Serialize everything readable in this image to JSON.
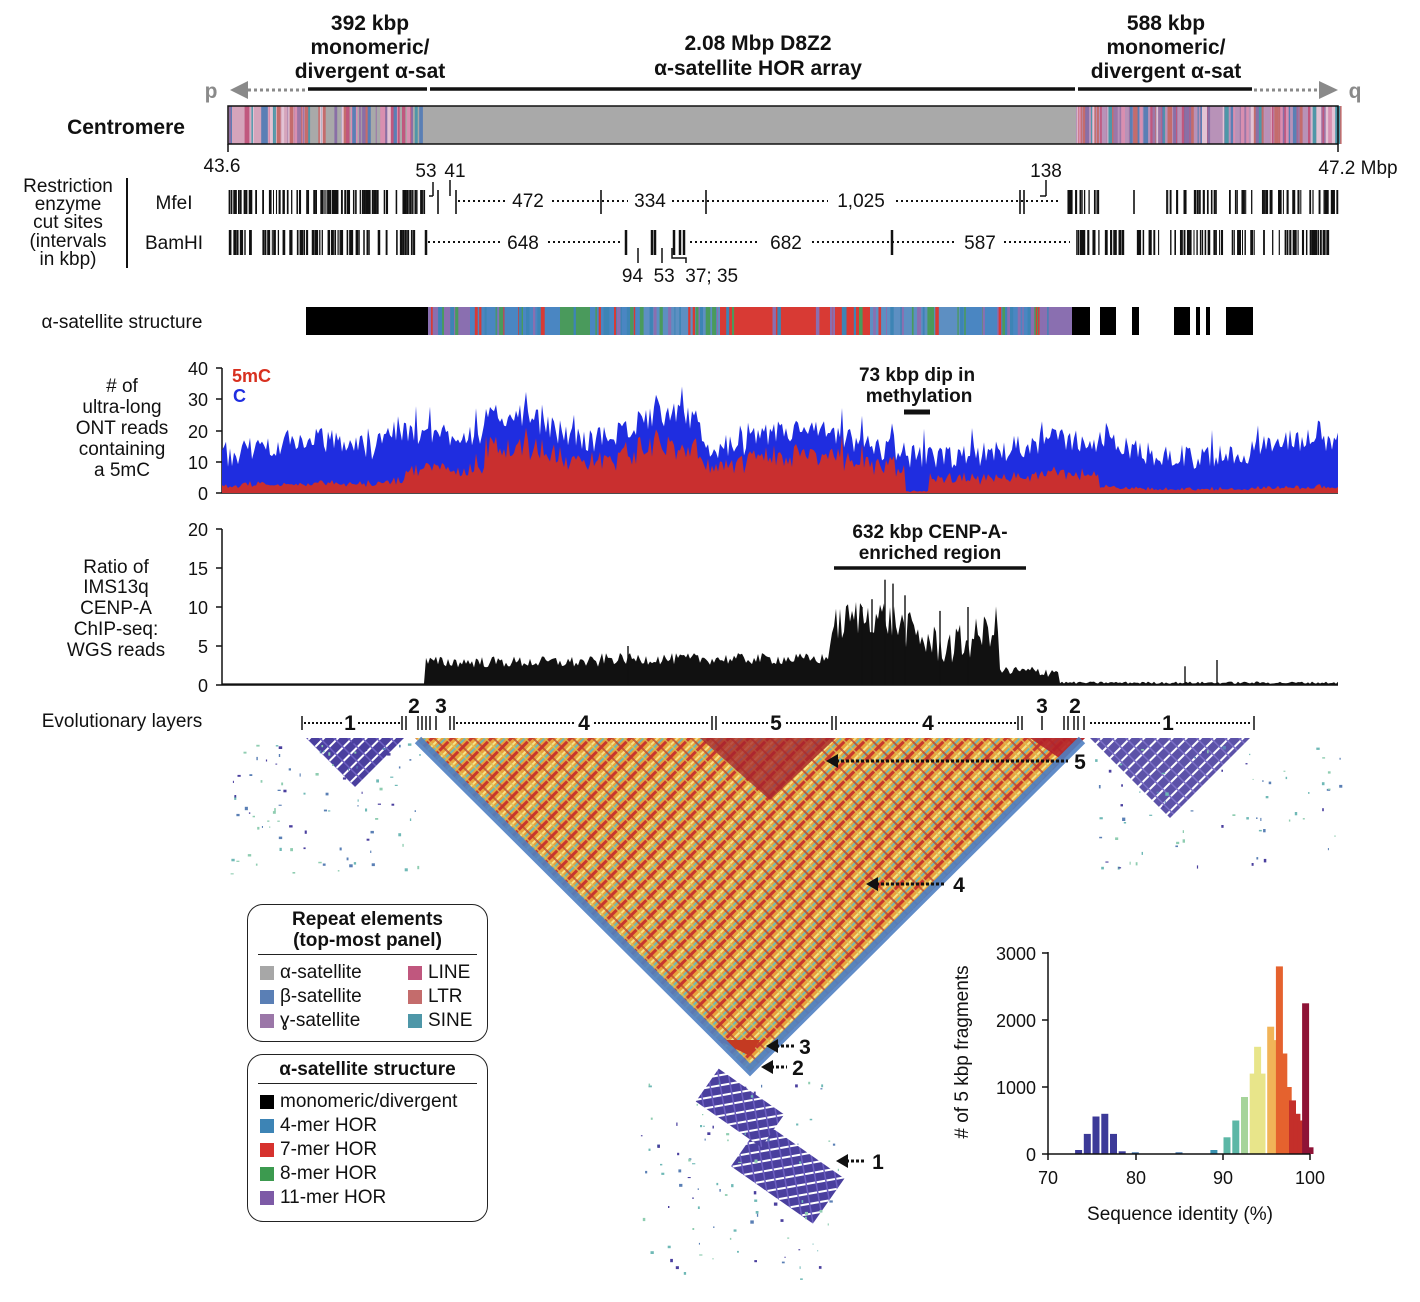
{
  "header": {
    "left_block": [
      "392 kbp",
      "monomeric/",
      "divergent α-sat"
    ],
    "center_block": [
      "2.08 Mbp D8Z2",
      "α-satellite HOR array"
    ],
    "right_block": [
      "588 kbp",
      "monomeric/",
      "divergent α-sat"
    ],
    "p_arm": "p",
    "q_arm": "q"
  },
  "centromere_track": {
    "label": "Centromere",
    "start_coord": "43.6",
    "end_coord": "47.2 Mbp"
  },
  "restriction": {
    "group_label": [
      "Restriction",
      "enzyme",
      "cut sites",
      "(intervals",
      "in kbp)"
    ],
    "mfei": {
      "label": "MfeI",
      "intervals": [
        "472",
        "334",
        "1,025"
      ],
      "callouts": [
        "53",
        "41",
        "138"
      ]
    },
    "bamhi": {
      "label": "BamHI",
      "intervals": [
        "648",
        "682",
        "587"
      ],
      "callouts": "94  53  37; 35"
    }
  },
  "alpha_structure_track": {
    "label": "α-satellite structure"
  },
  "methylation_panel": {
    "ylabel": [
      "# of",
      "ultra-long",
      "ONT reads",
      "containing",
      "a 5mC"
    ],
    "yticks": [
      "0",
      "10",
      "20",
      "30",
      "40"
    ],
    "series_5mC": "5mC",
    "series_C": "C",
    "annotation": [
      "73 kbp dip in",
      "methylation"
    ]
  },
  "chip_panel": {
    "ylabel": [
      "Ratio of",
      "IMS13q",
      "CENP-A",
      "ChIP-seq:",
      "WGS reads"
    ],
    "yticks": [
      "0",
      "5",
      "10",
      "15",
      "20"
    ],
    "annotation": [
      "632 kbp CENP-A-",
      "enriched region"
    ]
  },
  "evolutionary_layers": {
    "label": "Evolutionary layers",
    "layers": [
      "1",
      "2",
      "3",
      "4",
      "5",
      "4",
      "3",
      "2",
      "1"
    ]
  },
  "heatmap_arrows": [
    "5",
    "4",
    "3",
    "2",
    "1"
  ],
  "legend_repeats": {
    "title": [
      "Repeat elements",
      "(top-most panel)"
    ],
    "items_left": [
      {
        "label": "α-satellite",
        "color": "#a7a7a7"
      },
      {
        "label": "β-satellite",
        "color": "#5a7fb5"
      },
      {
        "label": "ɣ-satellite",
        "color": "#9b77a8"
      }
    ],
    "items_right": [
      {
        "label": "LINE",
        "color": "#c0577e"
      },
      {
        "label": "LTR",
        "color": "#c46c6c"
      },
      {
        "label": "SINE",
        "color": "#4e97a8"
      }
    ]
  },
  "legend_structure": {
    "title": [
      "α-satellite structure"
    ],
    "items": [
      {
        "label": "monomeric/divergent",
        "color": "#000000"
      },
      {
        "label": "4-mer HOR",
        "color": "#3d84b5"
      },
      {
        "label": "7-mer HOR",
        "color": "#d6322e"
      },
      {
        "label": "8-mer HOR",
        "color": "#3c9a4f"
      },
      {
        "label": "11-mer HOR",
        "color": "#7d5aa6"
      }
    ]
  },
  "histogram": {
    "ylabel": "# of 5 kbp fragments",
    "xlabel": "Sequence identity (%)",
    "xticks": [
      "70",
      "80",
      "90",
      "100"
    ],
    "yticks": [
      "0",
      "1000",
      "2000",
      "3000"
    ]
  },
  "chart_data": {
    "type": "bar",
    "xlabel": "Sequence identity (%)",
    "ylabel": "# of 5 kbp fragments",
    "xlim": [
      70,
      100
    ],
    "ylim": [
      0,
      3000
    ],
    "x": [
      73.5,
      74.5,
      75.5,
      76.5,
      77.5,
      78.5,
      80,
      85,
      89,
      90.5,
      91.5,
      92.5,
      93.5,
      94,
      94.5,
      95.5,
      96,
      96.5,
      97,
      97.5,
      98,
      98.5,
      99,
      99.5,
      100
    ],
    "values": [
      60,
      300,
      560,
      600,
      300,
      40,
      25,
      25,
      60,
      250,
      500,
      850,
      1200,
      1600,
      1200,
      1900,
      1700,
      2800,
      1500,
      1000,
      800,
      600,
      500,
      2250,
      100
    ]
  }
}
